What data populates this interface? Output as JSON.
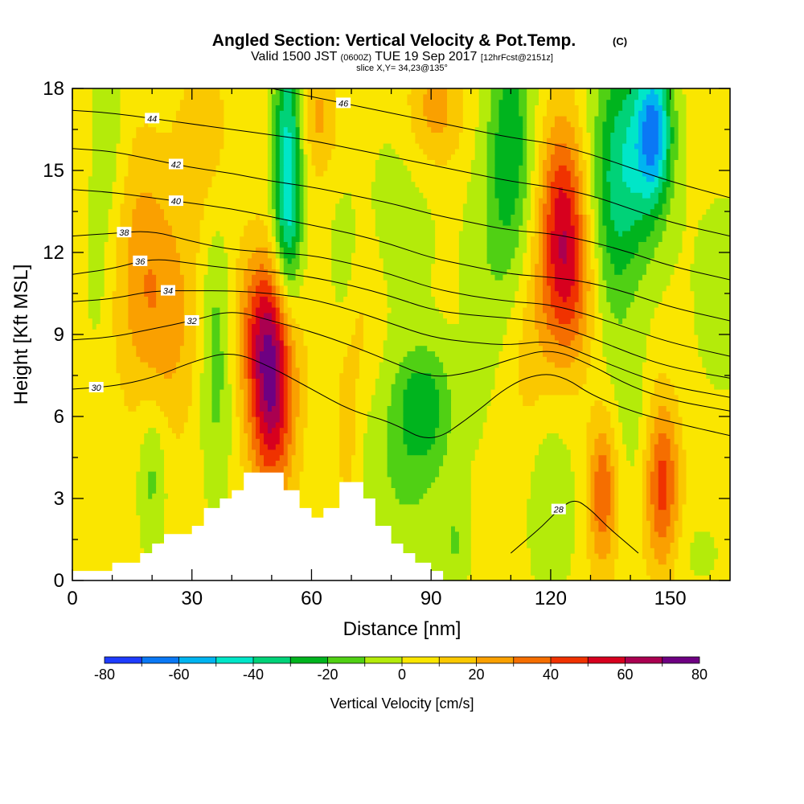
{
  "chart_data": {
    "type": "heatmap",
    "title": "Angled Section: Vertical Velocity & Pot.Temp.",
    "title_suffix": "(C)",
    "subtitle_parts": [
      "Valid 1500 JST",
      "(0600Z)",
      "TUE 19 Sep 2017",
      "[12hrFcst@2151z]"
    ],
    "slice_label": "slice X,Y= 34,23@135°",
    "xlabel": "Distance [nm]",
    "ylabel": "Height [Kft MSL]",
    "xlim": [
      0,
      165
    ],
    "ylim": [
      0,
      18
    ],
    "xticks": [
      0,
      30,
      60,
      90,
      120,
      150
    ],
    "yticks": [
      0,
      3,
      6,
      9,
      12,
      15,
      18
    ],
    "colorbar": {
      "label": "Vertical Velocity [cm/s]",
      "ticks": [
        -80,
        -60,
        -40,
        -20,
        0,
        20,
        40,
        60,
        80
      ],
      "bins": [
        {
          "from": -80,
          "to": -70,
          "color": "#1e3cff"
        },
        {
          "from": -70,
          "to": -60,
          "color": "#0a78f5"
        },
        {
          "from": -60,
          "to": -50,
          "color": "#00b4f0"
        },
        {
          "from": -50,
          "to": -40,
          "color": "#00e6c8"
        },
        {
          "from": -40,
          "to": -30,
          "color": "#00d278"
        },
        {
          "from": -30,
          "to": -20,
          "color": "#00b41e"
        },
        {
          "from": -20,
          "to": -10,
          "color": "#50d014"
        },
        {
          "from": -10,
          "to": 0,
          "color": "#b4eb0a"
        },
        {
          "from": 0,
          "to": 10,
          "color": "#fae600"
        },
        {
          "from": 10,
          "to": 20,
          "color": "#fac800"
        },
        {
          "from": 20,
          "to": 30,
          "color": "#faa000"
        },
        {
          "from": 30,
          "to": 40,
          "color": "#f56e00"
        },
        {
          "from": 40,
          "to": 50,
          "color": "#f03200"
        },
        {
          "from": 50,
          "to": 60,
          "color": "#d7001e"
        },
        {
          "from": 60,
          "to": 70,
          "color": "#aa0050"
        },
        {
          "from": 70,
          "to": 80,
          "color": "#6e0082"
        }
      ]
    },
    "velocity_features": [
      {
        "x": 50,
        "y": 6.8,
        "sx": 4,
        "sy": 2.6,
        "w": 60
      },
      {
        "x": 48,
        "y": 9.5,
        "sx": 5,
        "sy": 2.0,
        "w": 30
      },
      {
        "x": 23,
        "y": 9.5,
        "sx": 7,
        "sy": 3.0,
        "w": 20
      },
      {
        "x": 17,
        "y": 12.5,
        "sx": 5,
        "sy": 3.0,
        "w": 14
      },
      {
        "x": 33,
        "y": 16,
        "sx": 5,
        "sy": 2.5,
        "w": 12
      },
      {
        "x": 123,
        "y": 13.5,
        "sx": 4,
        "sy": 2.5,
        "w": 45
      },
      {
        "x": 125,
        "y": 10.5,
        "sx": 5,
        "sy": 2.0,
        "w": 25
      },
      {
        "x": 133,
        "y": 3.2,
        "sx": 2.5,
        "sy": 2.0,
        "w": 35
      },
      {
        "x": 148,
        "y": 3.5,
        "sx": 3,
        "sy": 2.2,
        "w": 40
      },
      {
        "x": 70,
        "y": 9.5,
        "sx": 4,
        "sy": 2.0,
        "w": 12
      },
      {
        "x": 91,
        "y": 17.2,
        "sx": 5,
        "sy": 1.5,
        "w": 22
      },
      {
        "x": 62,
        "y": 17.0,
        "sx": 3,
        "sy": 1.5,
        "w": 18
      },
      {
        "x": 69,
        "y": 5.0,
        "sx": 2,
        "sy": 2.0,
        "w": 12
      },
      {
        "x": 114,
        "y": 8.5,
        "sx": 7,
        "sy": 3.0,
        "w": 12
      },
      {
        "x": 54,
        "y": 16,
        "sx": 2.5,
        "sy": 3.5,
        "w": -40
      },
      {
        "x": 54,
        "y": 12.5,
        "sx": 2.5,
        "sy": 2.5,
        "w": -22
      },
      {
        "x": 36,
        "y": 8.5,
        "sx": 3,
        "sy": 3.5,
        "w": -22
      },
      {
        "x": 20,
        "y": 4.0,
        "sx": 2.5,
        "sy": 2.0,
        "w": -18
      },
      {
        "x": 88,
        "y": 6.5,
        "sx": 5,
        "sy": 1.5,
        "w": -25
      },
      {
        "x": 84,
        "y": 4.0,
        "sx": 8,
        "sy": 2.5,
        "w": -15
      },
      {
        "x": 68,
        "y": 11,
        "sx": 2.5,
        "sy": 2.0,
        "w": -15
      },
      {
        "x": 105,
        "y": 10.5,
        "sx": 5,
        "sy": 4.0,
        "w": -12
      },
      {
        "x": 110,
        "y": 16,
        "sx": 4,
        "sy": 3.5,
        "w": -30
      },
      {
        "x": 140,
        "y": 15.5,
        "sx": 6,
        "sy": 3.0,
        "w": -38
      },
      {
        "x": 146,
        "y": 16.5,
        "sx": 3,
        "sy": 1.8,
        "w": -50
      },
      {
        "x": 135,
        "y": 12,
        "sx": 4,
        "sy": 3.5,
        "w": -15
      },
      {
        "x": 120,
        "y": 3.0,
        "sx": 4,
        "sy": 2.5,
        "w": -15
      },
      {
        "x": 96,
        "y": 1.3,
        "sx": 2.5,
        "sy": 1.2,
        "w": -12
      },
      {
        "x": 9,
        "y": 16,
        "sx": 3,
        "sy": 3.0,
        "w": -12
      },
      {
        "x": 6,
        "y": 11,
        "sx": 2,
        "sy": 2.0,
        "w": -8
      },
      {
        "x": 83,
        "y": 13.5,
        "sx": 7,
        "sy": 3.0,
        "w": -8
      },
      {
        "x": 163,
        "y": 10.5,
        "sx": 6,
        "sy": 3.0,
        "w": -8
      },
      {
        "x": 157,
        "y": 1.0,
        "sx": 5,
        "sy": 1.0,
        "w": -6
      },
      {
        "x": 141,
        "y": 6.0,
        "sx": 3,
        "sy": 2.0,
        "w": -8
      }
    ],
    "theta_contours": [
      {
        "value": 28,
        "label_x": 122,
        "points": [
          [
            110,
            1
          ],
          [
            114,
            1.5
          ],
          [
            118,
            2.0
          ],
          [
            122,
            2.6
          ],
          [
            126,
            3.0
          ],
          [
            130,
            2.6
          ],
          [
            134,
            2.0
          ],
          [
            138,
            1.5
          ],
          [
            142,
            1
          ]
        ]
      },
      {
        "value": 30,
        "label_x": 6,
        "points": [
          [
            0,
            7.0
          ],
          [
            10,
            7.1
          ],
          [
            20,
            7.4
          ],
          [
            30,
            8.0
          ],
          [
            40,
            8.4
          ],
          [
            50,
            7.8
          ],
          [
            60,
            7.0
          ],
          [
            70,
            6.2
          ],
          [
            80,
            5.8
          ],
          [
            90,
            5.0
          ],
          [
            100,
            6.0
          ],
          [
            110,
            7.2
          ],
          [
            118,
            7.6
          ],
          [
            124,
            7.4
          ],
          [
            130,
            6.8
          ],
          [
            140,
            6.2
          ],
          [
            150,
            5.8
          ],
          [
            165,
            5.3
          ]
        ]
      },
      {
        "value": 32,
        "label_x": 30,
        "points": [
          [
            0,
            8.8
          ],
          [
            10,
            8.9
          ],
          [
            20,
            9.2
          ],
          [
            30,
            9.5
          ],
          [
            40,
            9.9
          ],
          [
            50,
            9.5
          ],
          [
            60,
            9.1
          ],
          [
            70,
            8.6
          ],
          [
            80,
            8.0
          ],
          [
            90,
            7.4
          ],
          [
            100,
            7.6
          ],
          [
            110,
            8.1
          ],
          [
            120,
            8.5
          ],
          [
            130,
            7.9
          ],
          [
            140,
            7.1
          ],
          [
            150,
            6.6
          ],
          [
            165,
            6.2
          ]
        ]
      },
      {
        "value": 34,
        "label_x": 24,
        "points": [
          [
            0,
            10.2
          ],
          [
            10,
            10.3
          ],
          [
            20,
            10.6
          ],
          [
            30,
            10.6
          ],
          [
            40,
            10.6
          ],
          [
            50,
            10.5
          ],
          [
            60,
            10.3
          ],
          [
            70,
            9.9
          ],
          [
            80,
            9.4
          ],
          [
            90,
            8.9
          ],
          [
            100,
            8.7
          ],
          [
            110,
            8.6
          ],
          [
            120,
            8.8
          ],
          [
            130,
            8.2
          ],
          [
            140,
            7.6
          ],
          [
            150,
            7.1
          ],
          [
            165,
            6.7
          ]
        ]
      },
      {
        "value": 36,
        "label_x": 17,
        "points": [
          [
            0,
            11.2
          ],
          [
            10,
            11.4
          ],
          [
            20,
            11.8
          ],
          [
            30,
            11.6
          ],
          [
            40,
            11.4
          ],
          [
            50,
            11.3
          ],
          [
            60,
            11.1
          ],
          [
            70,
            10.8
          ],
          [
            80,
            10.4
          ],
          [
            90,
            9.9
          ],
          [
            100,
            9.7
          ],
          [
            110,
            9.6
          ],
          [
            120,
            9.4
          ],
          [
            130,
            8.9
          ],
          [
            140,
            8.3
          ],
          [
            150,
            7.8
          ],
          [
            165,
            7.4
          ]
        ]
      },
      {
        "value": 38,
        "label_x": 13,
        "points": [
          [
            0,
            12.6
          ],
          [
            10,
            12.7
          ],
          [
            20,
            12.8
          ],
          [
            30,
            12.4
          ],
          [
            40,
            12.1
          ],
          [
            50,
            12.0
          ],
          [
            60,
            11.9
          ],
          [
            70,
            11.6
          ],
          [
            80,
            11.2
          ],
          [
            90,
            10.7
          ],
          [
            100,
            10.4
          ],
          [
            110,
            10.2
          ],
          [
            120,
            10.1
          ],
          [
            130,
            9.7
          ],
          [
            140,
            9.2
          ],
          [
            150,
            8.7
          ],
          [
            165,
            8.2
          ]
        ]
      },
      {
        "value": 40,
        "label_x": 26,
        "points": [
          [
            0,
            14.3
          ],
          [
            10,
            14.2
          ],
          [
            20,
            14.0
          ],
          [
            30,
            13.8
          ],
          [
            40,
            13.6
          ],
          [
            50,
            13.3
          ],
          [
            60,
            13.0
          ],
          [
            70,
            12.7
          ],
          [
            80,
            12.3
          ],
          [
            90,
            11.8
          ],
          [
            100,
            11.5
          ],
          [
            110,
            11.2
          ],
          [
            120,
            11.1
          ],
          [
            130,
            10.9
          ],
          [
            140,
            10.5
          ],
          [
            150,
            10.0
          ],
          [
            165,
            9.5
          ]
        ]
      },
      {
        "value": 42,
        "label_x": 26,
        "points": [
          [
            0,
            15.8
          ],
          [
            10,
            15.7
          ],
          [
            20,
            15.4
          ],
          [
            30,
            15.1
          ],
          [
            40,
            14.9
          ],
          [
            50,
            14.6
          ],
          [
            60,
            14.4
          ],
          [
            70,
            14.1
          ],
          [
            80,
            13.8
          ],
          [
            90,
            13.4
          ],
          [
            100,
            13.1
          ],
          [
            110,
            12.8
          ],
          [
            120,
            12.7
          ],
          [
            130,
            12.4
          ],
          [
            140,
            12.0
          ],
          [
            150,
            11.5
          ],
          [
            165,
            11.0
          ]
        ]
      },
      {
        "value": 44,
        "label_x": 20,
        "points": [
          [
            0,
            17.2
          ],
          [
            10,
            17.1
          ],
          [
            20,
            16.9
          ],
          [
            30,
            16.7
          ],
          [
            40,
            16.5
          ],
          [
            50,
            16.3
          ],
          [
            60,
            16.1
          ],
          [
            70,
            15.8
          ],
          [
            80,
            15.5
          ],
          [
            90,
            15.2
          ],
          [
            100,
            14.9
          ],
          [
            110,
            14.6
          ],
          [
            120,
            14.4
          ],
          [
            130,
            14.1
          ],
          [
            140,
            13.6
          ],
          [
            150,
            13.1
          ],
          [
            165,
            12.6
          ]
        ]
      },
      {
        "value": 46,
        "label_x": 68,
        "points": [
          [
            50,
            18.0
          ],
          [
            60,
            17.7
          ],
          [
            70,
            17.4
          ],
          [
            80,
            17.1
          ],
          [
            90,
            16.8
          ],
          [
            100,
            16.5
          ],
          [
            110,
            16.2
          ],
          [
            120,
            16.0
          ],
          [
            130,
            15.6
          ],
          [
            140,
            15.1
          ],
          [
            150,
            14.6
          ],
          [
            165,
            14.0
          ]
        ]
      }
    ],
    "terrain": [
      [
        0,
        0
      ],
      [
        0,
        0.35
      ],
      [
        10,
        0.35
      ],
      [
        10,
        0.65
      ],
      [
        17,
        0.65
      ],
      [
        17,
        1.0
      ],
      [
        20,
        1.0
      ],
      [
        20,
        1.35
      ],
      [
        23,
        1.35
      ],
      [
        23,
        1.7
      ],
      [
        30,
        1.7
      ],
      [
        30,
        2.0
      ],
      [
        33,
        2.0
      ],
      [
        33,
        2.65
      ],
      [
        37,
        2.65
      ],
      [
        37,
        3.0
      ],
      [
        40,
        3.0
      ],
      [
        40,
        3.3
      ],
      [
        43,
        3.3
      ],
      [
        43,
        3.95
      ],
      [
        53,
        3.95
      ],
      [
        53,
        3.3
      ],
      [
        57,
        3.3
      ],
      [
        57,
        2.65
      ],
      [
        60,
        2.65
      ],
      [
        60,
        2.3
      ],
      [
        63,
        2.3
      ],
      [
        63,
        2.65
      ],
      [
        67,
        2.65
      ],
      [
        67,
        3.6
      ],
      [
        73,
        3.6
      ],
      [
        73,
        3.0
      ],
      [
        76,
        3.0
      ],
      [
        76,
        2.0
      ],
      [
        80,
        2.0
      ],
      [
        80,
        1.35
      ],
      [
        83,
        1.35
      ],
      [
        83,
        1.0
      ],
      [
        86,
        1.0
      ],
      [
        86,
        0.65
      ],
      [
        90,
        0.65
      ],
      [
        90,
        0.35
      ],
      [
        93,
        0.35
      ],
      [
        93,
        0
      ],
      [
        0,
        0
      ]
    ]
  }
}
